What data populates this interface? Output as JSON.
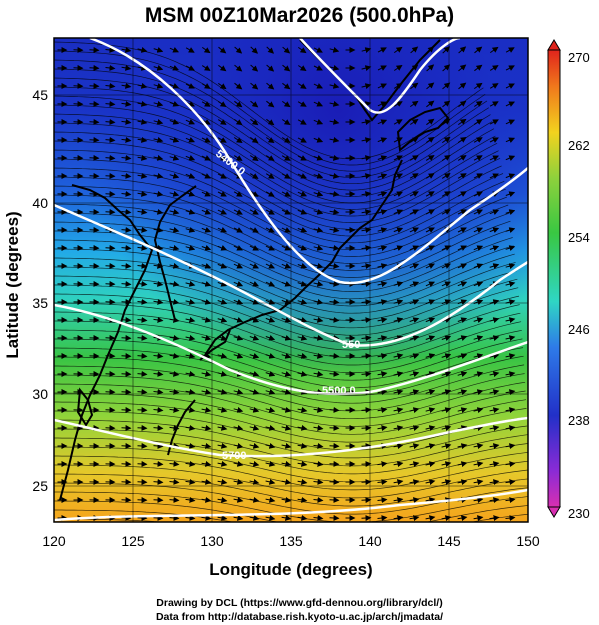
{
  "title": "MSM 00Z10Mar2026 (500.0hPa)",
  "xaxis": {
    "label": "Longitude (degrees)",
    "ticks": [
      "120",
      "125",
      "130",
      "135",
      "140",
      "145",
      "150"
    ]
  },
  "yaxis": {
    "label": "Latitude  (degrees)",
    "ticks": [
      "25",
      "30",
      "35",
      "40",
      "45"
    ]
  },
  "colorbar": {
    "labels": [
      "270",
      "262",
      "254",
      "246",
      "238",
      "230"
    ],
    "min": 230,
    "max": 270
  },
  "contour_labels": [
    "5400.0",
    "5500.0",
    "5700",
    "550"
  ],
  "credits": {
    "line1": "Drawing by DCL (https://www.gfd-dennou.org/library/dcl/)",
    "line2": "Data from http://database.rish.kyoto-u.ac.jp/arch/jmadata/"
  },
  "colors": {
    "cold": "#1a2fc8",
    "mid": "#2fd6c4",
    "green": "#3cc43a",
    "warm": "#f4a21e",
    "contour": "#ffffff",
    "coast": "#000000",
    "vector": "#000000"
  }
}
